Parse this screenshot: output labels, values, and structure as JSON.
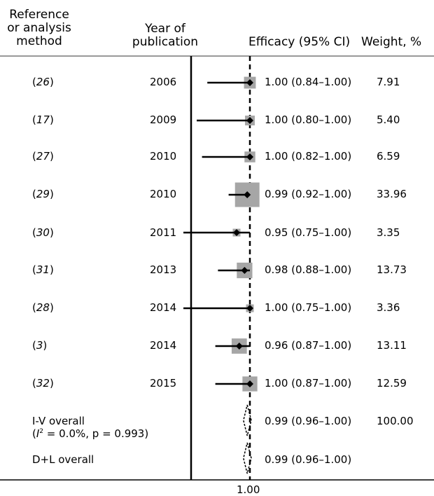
{
  "header": {
    "reference": [
      "Reference",
      "or analysis",
      "method"
    ],
    "year": [
      "Year of",
      "publication"
    ],
    "efficacy": "Efficacy (95% CI)",
    "weight": "Weight, %"
  },
  "overall_iv": {
    "label": "I-V overall",
    "stat_i": "I",
    "stat_sup": "2",
    "stat_rest": " = 0.0%, p = 0.993)",
    "stat_open": "(",
    "efficacy": "0.99 (0.96–1.00)",
    "weight": "100.00"
  },
  "overall_dl": {
    "label": "D+L overall",
    "efficacy": "0.99 (0.96–1.00)"
  },
  "x_tick_label": "1.00",
  "colors": {
    "box": "#a6a6a6",
    "line": "#000000"
  },
  "chart_data": {
    "type": "forest",
    "studies": [
      {
        "ref": "26",
        "year": "2006",
        "est": 1.0,
        "lo": 0.84,
        "hi": 1.0,
        "ci_text": "1.00 (0.84–1.00)",
        "weight": 7.91,
        "weight_text": "7.91"
      },
      {
        "ref": "17",
        "year": "2009",
        "est": 1.0,
        "lo": 0.8,
        "hi": 1.0,
        "ci_text": "1.00 (0.80–1.00)",
        "weight": 5.4,
        "weight_text": "5.40"
      },
      {
        "ref": "27",
        "year": "2010",
        "est": 1.0,
        "lo": 0.82,
        "hi": 1.0,
        "ci_text": "1.00 (0.82–1.00)",
        "weight": 6.59,
        "weight_text": "6.59"
      },
      {
        "ref": "29",
        "year": "2010",
        "est": 0.99,
        "lo": 0.92,
        "hi": 1.0,
        "ci_text": "0.99 (0.92–1.00)",
        "weight": 33.96,
        "weight_text": "33.96"
      },
      {
        "ref": "30",
        "year": "2011",
        "est": 0.95,
        "lo": 0.75,
        "hi": 1.0,
        "ci_text": "0.95 (0.75–1.00)",
        "weight": 3.35,
        "weight_text": "3.35"
      },
      {
        "ref": "31",
        "year": "2013",
        "est": 0.98,
        "lo": 0.88,
        "hi": 1.0,
        "ci_text": "0.98 (0.88–1.00)",
        "weight": 13.73,
        "weight_text": "13.73"
      },
      {
        "ref": "28",
        "year": "2014",
        "est": 1.0,
        "lo": 0.75,
        "hi": 1.0,
        "ci_text": "1.00 (0.75–1.00)",
        "weight": 3.36,
        "weight_text": "3.36"
      },
      {
        "ref": "3",
        "year": "2014",
        "est": 0.96,
        "lo": 0.87,
        "hi": 1.0,
        "ci_text": "0.96 (0.87–1.00)",
        "weight": 13.11,
        "weight_text": "13.11"
      },
      {
        "ref": "32",
        "year": "2015",
        "est": 1.0,
        "lo": 0.87,
        "hi": 1.0,
        "ci_text": "1.00 (0.87–1.00)",
        "weight": 12.59,
        "weight_text": "12.59"
      }
    ],
    "overall": [
      {
        "method": "I-V overall",
        "est": 0.99,
        "lo": 0.96,
        "hi": 1.0
      },
      {
        "method": "D+L overall",
        "est": 0.99,
        "lo": 0.96,
        "hi": 1.0
      }
    ],
    "reference_line": 1.0,
    "x_ticks": [
      1.0
    ]
  }
}
